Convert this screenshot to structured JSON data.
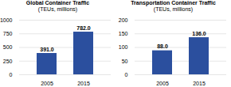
{
  "chart_data": [
    {
      "type": "bar",
      "title": "Global Container Traffic",
      "subtitle": "(TEUs, millions)",
      "categories": [
        "2005",
        "2015"
      ],
      "values": [
        391.0,
        782.0
      ],
      "value_labels": [
        "391.0",
        "782.0"
      ],
      "color": "#2B4F9E",
      "ylim": [
        0,
        1000
      ],
      "yticks": [
        0,
        250,
        500,
        750,
        1000
      ],
      "grid": true,
      "data_labels": true
    },
    {
      "type": "bar",
      "title": "Transportation Container Traffic",
      "subtitle": "(TEUs, millions)",
      "categories": [
        "2005",
        "2015"
      ],
      "values": [
        88.0,
        136.0
      ],
      "value_labels": [
        "88.0",
        "136.0"
      ],
      "color": "#2B4F9E",
      "ylim": [
        0,
        200
      ],
      "yticks": [
        0,
        50,
        100,
        150,
        200
      ],
      "grid": true,
      "data_labels": true
    }
  ]
}
